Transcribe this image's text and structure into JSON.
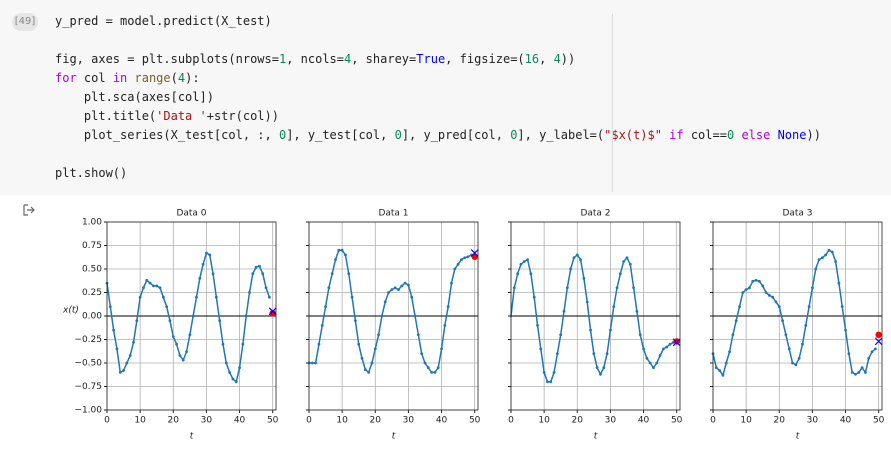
{
  "cell": {
    "execution_count": "[49]",
    "code": [
      [
        {
          "text": "y_pred = model.predict(X_test)"
        }
      ],
      [],
      [
        {
          "text": "fig, axes = plt.subplots(nrows="
        },
        {
          "text": "1",
          "color": "#09885a"
        },
        {
          "text": ", ncols="
        },
        {
          "text": "4",
          "color": "#09885a"
        },
        {
          "text": ", sharey="
        },
        {
          "text": "True",
          "color": "#0000ff"
        },
        {
          "text": ", figsize=("
        },
        {
          "text": "16",
          "color": "#09885a"
        },
        {
          "text": ", "
        },
        {
          "text": "4",
          "color": "#09885a"
        },
        {
          "text": "))"
        }
      ],
      [
        {
          "text": "for",
          "color": "#af00db"
        },
        {
          "text": " col "
        },
        {
          "text": "in",
          "color": "#af00db"
        },
        {
          "text": " "
        },
        {
          "text": "range",
          "color": "#795e26"
        },
        {
          "text": "("
        },
        {
          "text": "4",
          "color": "#09885a"
        },
        {
          "text": "):"
        }
      ],
      [
        {
          "text": "    plt.sca(axes[col])"
        }
      ],
      [
        {
          "text": "    plt.title("
        },
        {
          "text": "'Data '",
          "color": "#a31515"
        },
        {
          "text": "+str(col))"
        }
      ],
      [
        {
          "text": "    plot_series(X_test[col, :, "
        },
        {
          "text": "0",
          "color": "#09885a"
        },
        {
          "text": "], y_test[col, "
        },
        {
          "text": "0",
          "color": "#09885a"
        },
        {
          "text": "], y_pred[col, "
        },
        {
          "text": "0",
          "color": "#09885a"
        },
        {
          "text": "], y_label=("
        },
        {
          "text": "\"$x(t)$\"",
          "color": "#a31515"
        },
        {
          "text": " "
        },
        {
          "text": "if",
          "color": "#af00db"
        },
        {
          "text": " col=="
        },
        {
          "text": "0",
          "color": "#09885a"
        },
        {
          "text": " "
        },
        {
          "text": "else",
          "color": "#af00db"
        },
        {
          "text": " "
        },
        {
          "text": "None",
          "color": "#0000ff"
        },
        {
          "text": "))"
        }
      ],
      [],
      [
        {
          "text": "plt.show()"
        }
      ]
    ]
  },
  "chart_data": [
    {
      "type": "line",
      "title": "Data 0",
      "xlabel": "t",
      "ylabel": "x(t)",
      "color": "#1f77b4",
      "grid": true,
      "x": [
        0,
        1,
        2,
        3,
        4,
        5,
        6,
        7,
        8,
        9,
        10,
        11,
        12,
        13,
        14,
        15,
        16,
        17,
        18,
        19,
        20,
        21,
        22,
        23,
        24,
        25,
        26,
        27,
        28,
        29,
        30,
        31,
        32,
        33,
        34,
        35,
        36,
        37,
        38,
        39,
        40,
        41,
        42,
        43,
        44,
        45,
        46,
        47,
        48,
        49
      ],
      "values": [
        0.35,
        0.1,
        -0.15,
        -0.35,
        -0.6,
        -0.58,
        -0.5,
        -0.42,
        -0.28,
        -0.05,
        0.2,
        0.3,
        0.38,
        0.35,
        0.32,
        0.32,
        0.3,
        0.2,
        0.1,
        -0.05,
        -0.22,
        -0.3,
        -0.42,
        -0.47,
        -0.38,
        -0.2,
        0.0,
        0.2,
        0.4,
        0.55,
        0.67,
        0.65,
        0.45,
        0.2,
        -0.05,
        -0.3,
        -0.5,
        -0.6,
        -0.67,
        -0.7,
        -0.55,
        -0.3,
        0.0,
        0.25,
        0.45,
        0.52,
        0.53,
        0.45,
        0.3,
        0.2
      ],
      "target": {
        "x": 50,
        "value": 0.03,
        "color": "#ff0000"
      },
      "prediction": {
        "x": 50,
        "value": 0.05,
        "color": "#0000ff"
      },
      "xlim": [
        0,
        51
      ],
      "xticks": [
        0,
        10,
        20,
        30,
        40,
        50
      ],
      "ylim": [
        -1,
        1
      ],
      "yticks": [
        {
          "value": -1,
          "label": "−1.00"
        },
        {
          "value": -0.75,
          "label": "−0.75"
        },
        {
          "value": -0.5,
          "label": "−0.50"
        },
        {
          "value": -0.25,
          "label": "−0.25"
        },
        {
          "value": 0,
          "label": "0.00"
        },
        {
          "value": 0.25,
          "label": "0.25"
        },
        {
          "value": 0.5,
          "label": "0.50"
        },
        {
          "value": 0.75,
          "label": "0.75"
        },
        {
          "value": 1,
          "label": "1.00"
        }
      ]
    },
    {
      "type": "line",
      "title": "Data 1",
      "xlabel": "t",
      "color": "#1f77b4",
      "grid": true,
      "sharey": true,
      "x": [
        0,
        1,
        2,
        3,
        4,
        5,
        6,
        7,
        8,
        9,
        10,
        11,
        12,
        13,
        14,
        15,
        16,
        17,
        18,
        19,
        20,
        21,
        22,
        23,
        24,
        25,
        26,
        27,
        28,
        29,
        30,
        31,
        32,
        33,
        34,
        35,
        36,
        37,
        38,
        39,
        40,
        41,
        42,
        43,
        44,
        45,
        46,
        47,
        48,
        49
      ],
      "values": [
        -0.5,
        -0.5,
        -0.5,
        -0.3,
        -0.1,
        0.1,
        0.3,
        0.45,
        0.6,
        0.7,
        0.7,
        0.65,
        0.45,
        0.2,
        -0.05,
        -0.3,
        -0.45,
        -0.57,
        -0.6,
        -0.5,
        -0.35,
        -0.2,
        0.0,
        0.15,
        0.25,
        0.28,
        0.3,
        0.28,
        0.32,
        0.35,
        0.33,
        0.2,
        0.0,
        -0.2,
        -0.4,
        -0.5,
        -0.55,
        -0.6,
        -0.6,
        -0.55,
        -0.35,
        -0.1,
        0.1,
        0.35,
        0.5,
        0.55,
        0.6,
        0.62,
        0.63,
        0.65
      ],
      "target": {
        "x": 50,
        "value": 0.63,
        "color": "#ff0000"
      },
      "prediction": {
        "x": 50,
        "value": 0.67,
        "color": "#0000ff"
      },
      "xlim": [
        0,
        51
      ],
      "xticks": [
        0,
        10,
        20,
        30,
        40,
        50
      ]
    },
    {
      "type": "line",
      "title": "Data 2",
      "xlabel": "t",
      "color": "#1f77b4",
      "grid": true,
      "sharey": true,
      "x": [
        0,
        1,
        2,
        3,
        4,
        5,
        6,
        7,
        8,
        9,
        10,
        11,
        12,
        13,
        14,
        15,
        16,
        17,
        18,
        19,
        20,
        21,
        22,
        23,
        24,
        25,
        26,
        27,
        28,
        29,
        30,
        31,
        32,
        33,
        34,
        35,
        36,
        37,
        38,
        39,
        40,
        41,
        42,
        43,
        44,
        45,
        46,
        47,
        48,
        49
      ],
      "values": [
        0.0,
        0.3,
        0.45,
        0.55,
        0.58,
        0.6,
        0.45,
        0.2,
        -0.1,
        -0.35,
        -0.6,
        -0.7,
        -0.7,
        -0.6,
        -0.4,
        -0.2,
        0.05,
        0.3,
        0.5,
        0.62,
        0.65,
        0.6,
        0.4,
        0.15,
        -0.15,
        -0.4,
        -0.55,
        -0.62,
        -0.55,
        -0.4,
        -0.15,
        0.1,
        0.3,
        0.45,
        0.58,
        0.62,
        0.55,
        0.3,
        0.05,
        -0.2,
        -0.35,
        -0.45,
        -0.5,
        -0.55,
        -0.5,
        -0.42,
        -0.35,
        -0.33,
        -0.3,
        -0.28
      ],
      "target": {
        "x": 50,
        "value": -0.27,
        "color": "#ff0000"
      },
      "prediction": {
        "x": 50,
        "value": -0.28,
        "color": "#0000ff"
      },
      "xlim": [
        0,
        51
      ],
      "xticks": [
        0,
        10,
        20,
        30,
        40,
        50
      ]
    },
    {
      "type": "line",
      "title": "Data 3",
      "xlabel": "t",
      "color": "#1f77b4",
      "grid": true,
      "sharey": true,
      "x": [
        0,
        1,
        2,
        3,
        4,
        5,
        6,
        7,
        8,
        9,
        10,
        11,
        12,
        13,
        14,
        15,
        16,
        17,
        18,
        19,
        20,
        21,
        22,
        23,
        24,
        25,
        26,
        27,
        28,
        29,
        30,
        31,
        32,
        33,
        34,
        35,
        36,
        37,
        38,
        39,
        40,
        41,
        42,
        43,
        44,
        45,
        46,
        47,
        48,
        49
      ],
      "values": [
        -0.4,
        -0.55,
        -0.58,
        -0.63,
        -0.5,
        -0.38,
        -0.2,
        -0.05,
        0.1,
        0.25,
        0.28,
        0.3,
        0.37,
        0.38,
        0.37,
        0.32,
        0.25,
        0.22,
        0.2,
        0.15,
        0.1,
        -0.05,
        -0.2,
        -0.35,
        -0.5,
        -0.52,
        -0.45,
        -0.3,
        -0.1,
        0.1,
        0.3,
        0.5,
        0.6,
        0.62,
        0.65,
        0.7,
        0.68,
        0.58,
        0.35,
        0.1,
        -0.15,
        -0.4,
        -0.6,
        -0.62,
        -0.6,
        -0.55,
        -0.6,
        -0.45,
        -0.38,
        -0.35
      ],
      "target": {
        "x": 50,
        "value": -0.2,
        "color": "#ff0000"
      },
      "prediction": {
        "x": 50,
        "value": -0.27,
        "color": "#0000ff"
      },
      "xlim": [
        0,
        51
      ],
      "xticks": [
        0,
        10,
        20,
        30,
        40,
        50
      ]
    }
  ]
}
